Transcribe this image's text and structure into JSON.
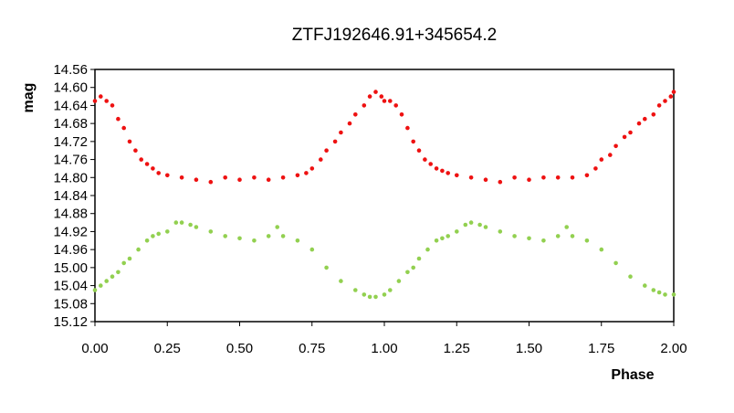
{
  "chart_data": {
    "type": "scatter",
    "title": "ZTFJ192646.91+345654.2",
    "xlabel": "Phase",
    "ylabel": "mag",
    "xlim": [
      0.0,
      2.0
    ],
    "ylim": [
      15.12,
      14.56
    ],
    "y_inverted": true,
    "grid": false,
    "legend": "none",
    "xticks": [
      "0.00",
      "0.25",
      "0.50",
      "0.75",
      "1.00",
      "1.25",
      "1.50",
      "1.75",
      "2.00"
    ],
    "yticks": [
      "14.56",
      "14.60",
      "14.64",
      "14.68",
      "14.72",
      "14.76",
      "14.80",
      "14.84",
      "14.88",
      "14.92",
      "14.96",
      "15.00",
      "15.04",
      "15.08",
      "15.12"
    ],
    "series": [
      {
        "color": "#ee1111",
        "marker": "circle",
        "x": [
          0.0,
          0.02,
          0.04,
          0.06,
          0.08,
          0.1,
          0.12,
          0.14,
          0.16,
          0.18,
          0.2,
          0.22,
          0.25,
          0.3,
          0.35,
          0.4,
          0.45,
          0.5,
          0.55,
          0.6,
          0.65,
          0.7,
          0.73,
          0.75,
          0.78,
          0.8,
          0.83,
          0.85,
          0.88,
          0.9,
          0.93,
          0.95,
          0.97,
          0.99,
          1.0,
          1.02,
          1.04,
          1.06,
          1.08,
          1.1,
          1.12,
          1.14,
          1.16,
          1.18,
          1.2,
          1.22,
          1.25,
          1.3,
          1.35,
          1.4,
          1.45,
          1.5,
          1.55,
          1.6,
          1.65,
          1.7,
          1.73,
          1.75,
          1.78,
          1.8,
          1.83,
          1.85,
          1.88,
          1.9,
          1.93,
          1.95,
          1.97,
          1.99,
          2.0
        ],
        "y": [
          14.63,
          14.62,
          14.63,
          14.64,
          14.67,
          14.69,
          14.72,
          14.74,
          14.76,
          14.77,
          14.78,
          14.79,
          14.795,
          14.8,
          14.805,
          14.81,
          14.8,
          14.805,
          14.8,
          14.805,
          14.8,
          14.795,
          14.79,
          14.78,
          14.76,
          14.74,
          14.72,
          14.7,
          14.68,
          14.66,
          14.64,
          14.62,
          14.61,
          14.62,
          14.63,
          14.63,
          14.64,
          14.66,
          14.69,
          14.72,
          14.74,
          14.76,
          14.77,
          14.78,
          14.785,
          14.79,
          14.795,
          14.8,
          14.805,
          14.81,
          14.8,
          14.805,
          14.8,
          14.8,
          14.8,
          14.795,
          14.78,
          14.76,
          14.75,
          14.73,
          14.71,
          14.7,
          14.68,
          14.67,
          14.66,
          14.64,
          14.63,
          14.62,
          14.61
        ]
      },
      {
        "color": "#92d050",
        "marker": "circle",
        "x": [
          0.0,
          0.02,
          0.04,
          0.06,
          0.08,
          0.1,
          0.12,
          0.15,
          0.18,
          0.2,
          0.22,
          0.25,
          0.28,
          0.3,
          0.33,
          0.35,
          0.4,
          0.45,
          0.5,
          0.55,
          0.6,
          0.63,
          0.65,
          0.7,
          0.75,
          0.8,
          0.85,
          0.9,
          0.93,
          0.95,
          0.97,
          1.0,
          1.02,
          1.05,
          1.08,
          1.1,
          1.12,
          1.15,
          1.18,
          1.2,
          1.22,
          1.25,
          1.28,
          1.3,
          1.33,
          1.35,
          1.4,
          1.45,
          1.5,
          1.55,
          1.6,
          1.63,
          1.65,
          1.7,
          1.75,
          1.8,
          1.85,
          1.9,
          1.93,
          1.95,
          1.97,
          2.0
        ],
        "y": [
          15.05,
          15.04,
          15.03,
          15.02,
          15.01,
          14.99,
          14.98,
          14.96,
          14.94,
          14.93,
          14.925,
          14.92,
          14.9,
          14.9,
          14.905,
          14.91,
          14.92,
          14.93,
          14.935,
          14.94,
          14.93,
          14.91,
          14.93,
          14.94,
          14.96,
          15.0,
          15.03,
          15.05,
          15.06,
          15.065,
          15.065,
          15.06,
          15.05,
          15.03,
          15.01,
          15.0,
          14.98,
          14.96,
          14.94,
          14.935,
          14.93,
          14.92,
          14.905,
          14.9,
          14.905,
          14.91,
          14.92,
          14.93,
          14.935,
          14.94,
          14.93,
          14.91,
          14.93,
          14.94,
          14.96,
          14.99,
          15.02,
          15.04,
          15.05,
          15.055,
          15.06,
          15.06
        ]
      }
    ]
  }
}
